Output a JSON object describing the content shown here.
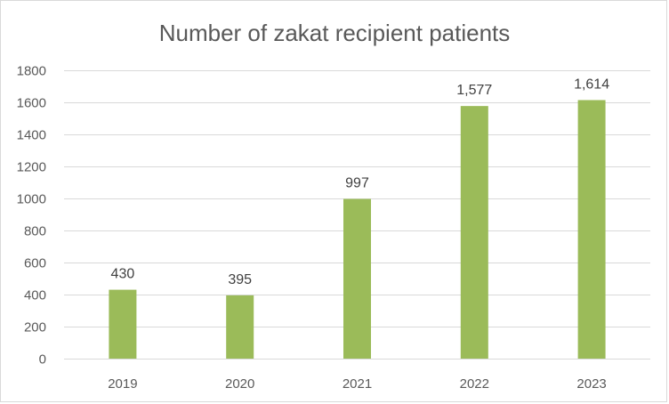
{
  "chart_data": {
    "type": "bar",
    "title": "Number of zakat recipient patients",
    "xlabel": "",
    "ylabel": "",
    "categories": [
      "2019",
      "2020",
      "2021",
      "2022",
      "2023"
    ],
    "values": [
      430,
      395,
      997,
      1577,
      1614
    ],
    "data_labels": [
      "430",
      "395",
      "997",
      "1,577",
      "1,614"
    ],
    "ylim": [
      0,
      1800
    ],
    "yticks": [
      0,
      200,
      400,
      600,
      800,
      1000,
      1200,
      1400,
      1600,
      1800
    ],
    "grid": true,
    "legend": "none",
    "bar_color": "#9BBB59"
  }
}
